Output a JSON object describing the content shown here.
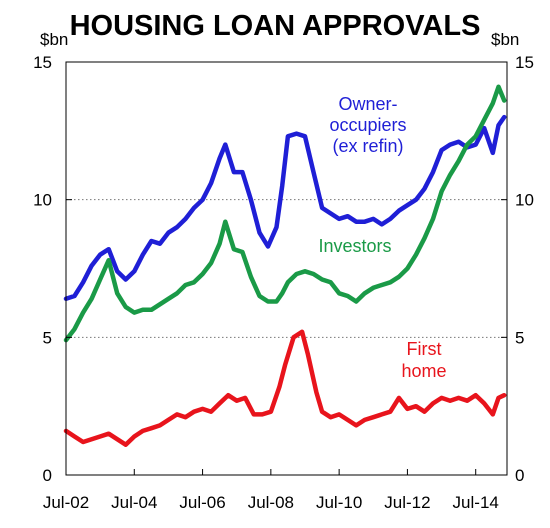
{
  "chart_data": {
    "type": "line",
    "title": "HOUSING LOAN APPROVALS",
    "ylabel_left": "$bn",
    "ylabel_right": "$bn",
    "ylim": [
      0,
      15
    ],
    "yticks": [
      0,
      5,
      10,
      15
    ],
    "yticklabels": [
      "0",
      "5",
      "10",
      "15"
    ],
    "xlim": [
      "2002-07",
      "2015-06"
    ],
    "xticks": [
      "2002-07",
      "2004-07",
      "2006-07",
      "2008-07",
      "2010-07",
      "2012-07",
      "2014-07"
    ],
    "xticklabels": [
      "Jul-02",
      "Jul-04",
      "Jul-06",
      "Jul-08",
      "Jul-10",
      "Jul-12",
      "Jul-14"
    ],
    "gridlines": "horizontal dotted at 5 and 10",
    "series": [
      {
        "name": "Owner-occupiers (ex refin)",
        "label_lines": [
          "Owner-",
          "occupiers",
          "(ex refin)"
        ],
        "color": "#1f1fd6",
        "points": [
          [
            "2002-07",
            6.4
          ],
          [
            "2002-10",
            6.5
          ],
          [
            "2003-01",
            7.0
          ],
          [
            "2003-04",
            7.6
          ],
          [
            "2003-07",
            8.0
          ],
          [
            "2003-10",
            8.2
          ],
          [
            "2004-01",
            7.4
          ],
          [
            "2004-04",
            7.1
          ],
          [
            "2004-07",
            7.4
          ],
          [
            "2004-10",
            8.0
          ],
          [
            "2005-01",
            8.5
          ],
          [
            "2005-04",
            8.4
          ],
          [
            "2005-07",
            8.8
          ],
          [
            "2005-10",
            9.0
          ],
          [
            "2006-01",
            9.3
          ],
          [
            "2006-04",
            9.7
          ],
          [
            "2006-07",
            10.0
          ],
          [
            "2006-10",
            10.6
          ],
          [
            "2007-01",
            11.5
          ],
          [
            "2007-03",
            12.0
          ],
          [
            "2007-06",
            11.0
          ],
          [
            "2007-09",
            11.0
          ],
          [
            "2007-12",
            10.0
          ],
          [
            "2008-03",
            8.8
          ],
          [
            "2008-06",
            8.3
          ],
          [
            "2008-09",
            9.0
          ],
          [
            "2008-11",
            10.5
          ],
          [
            "2009-01",
            12.3
          ],
          [
            "2009-04",
            12.4
          ],
          [
            "2009-07",
            12.3
          ],
          [
            "2009-10",
            11.0
          ],
          [
            "2010-01",
            9.7
          ],
          [
            "2010-04",
            9.5
          ],
          [
            "2010-07",
            9.3
          ],
          [
            "2010-10",
            9.4
          ],
          [
            "2011-01",
            9.2
          ],
          [
            "2011-04",
            9.2
          ],
          [
            "2011-07",
            9.3
          ],
          [
            "2011-10",
            9.1
          ],
          [
            "2012-01",
            9.3
          ],
          [
            "2012-04",
            9.6
          ],
          [
            "2012-07",
            9.8
          ],
          [
            "2012-10",
            10.0
          ],
          [
            "2013-01",
            10.4
          ],
          [
            "2013-04",
            11.0
          ],
          [
            "2013-07",
            11.8
          ],
          [
            "2013-10",
            12.0
          ],
          [
            "2014-01",
            12.1
          ],
          [
            "2014-04",
            11.9
          ],
          [
            "2014-07",
            12.0
          ],
          [
            "2014-10",
            12.6
          ],
          [
            "2015-01",
            11.7
          ],
          [
            "2015-03",
            12.7
          ],
          [
            "2015-05",
            13.0
          ]
        ]
      },
      {
        "name": "Investors",
        "label_lines": [
          "Investors"
        ],
        "color": "#1a9a47",
        "points": [
          [
            "2002-07",
            4.9
          ],
          [
            "2002-10",
            5.3
          ],
          [
            "2003-01",
            5.9
          ],
          [
            "2003-04",
            6.4
          ],
          [
            "2003-07",
            7.1
          ],
          [
            "2003-10",
            7.8
          ],
          [
            "2004-01",
            6.6
          ],
          [
            "2004-04",
            6.1
          ],
          [
            "2004-07",
            5.9
          ],
          [
            "2004-10",
            6.0
          ],
          [
            "2005-01",
            6.0
          ],
          [
            "2005-04",
            6.2
          ],
          [
            "2005-07",
            6.4
          ],
          [
            "2005-10",
            6.6
          ],
          [
            "2006-01",
            6.9
          ],
          [
            "2006-04",
            7.0
          ],
          [
            "2006-07",
            7.3
          ],
          [
            "2006-10",
            7.7
          ],
          [
            "2007-01",
            8.4
          ],
          [
            "2007-03",
            9.2
          ],
          [
            "2007-06",
            8.2
          ],
          [
            "2007-09",
            8.1
          ],
          [
            "2007-12",
            7.2
          ],
          [
            "2008-03",
            6.5
          ],
          [
            "2008-06",
            6.3
          ],
          [
            "2008-09",
            6.3
          ],
          [
            "2008-11",
            6.6
          ],
          [
            "2009-01",
            7.0
          ],
          [
            "2009-04",
            7.3
          ],
          [
            "2009-07",
            7.4
          ],
          [
            "2009-10",
            7.3
          ],
          [
            "2010-01",
            7.1
          ],
          [
            "2010-04",
            7.0
          ],
          [
            "2010-07",
            6.6
          ],
          [
            "2010-10",
            6.5
          ],
          [
            "2011-01",
            6.3
          ],
          [
            "2011-04",
            6.6
          ],
          [
            "2011-07",
            6.8
          ],
          [
            "2011-10",
            6.9
          ],
          [
            "2012-01",
            7.0
          ],
          [
            "2012-04",
            7.2
          ],
          [
            "2012-07",
            7.5
          ],
          [
            "2012-10",
            8.0
          ],
          [
            "2013-01",
            8.6
          ],
          [
            "2013-04",
            9.3
          ],
          [
            "2013-07",
            10.3
          ],
          [
            "2013-10",
            10.9
          ],
          [
            "2014-01",
            11.4
          ],
          [
            "2014-04",
            12.0
          ],
          [
            "2014-07",
            12.3
          ],
          [
            "2014-10",
            12.9
          ],
          [
            "2015-01",
            13.5
          ],
          [
            "2015-03",
            14.1
          ],
          [
            "2015-05",
            13.6
          ]
        ]
      },
      {
        "name": "First home",
        "label_lines": [
          "First",
          "home"
        ],
        "color": "#e8141c",
        "points": [
          [
            "2002-07",
            1.6
          ],
          [
            "2002-10",
            1.4
          ],
          [
            "2003-01",
            1.2
          ],
          [
            "2003-04",
            1.3
          ],
          [
            "2003-07",
            1.4
          ],
          [
            "2003-10",
            1.5
          ],
          [
            "2004-01",
            1.3
          ],
          [
            "2004-04",
            1.1
          ],
          [
            "2004-07",
            1.4
          ],
          [
            "2004-10",
            1.6
          ],
          [
            "2005-01",
            1.7
          ],
          [
            "2005-04",
            1.8
          ],
          [
            "2005-07",
            2.0
          ],
          [
            "2005-10",
            2.2
          ],
          [
            "2006-01",
            2.1
          ],
          [
            "2006-04",
            2.3
          ],
          [
            "2006-07",
            2.4
          ],
          [
            "2006-10",
            2.3
          ],
          [
            "2007-01",
            2.6
          ],
          [
            "2007-04",
            2.9
          ],
          [
            "2007-07",
            2.7
          ],
          [
            "2007-10",
            2.8
          ],
          [
            "2008-01",
            2.2
          ],
          [
            "2008-04",
            2.2
          ],
          [
            "2008-07",
            2.3
          ],
          [
            "2008-10",
            3.2
          ],
          [
            "2008-12",
            4.0
          ],
          [
            "2009-03",
            5.0
          ],
          [
            "2009-06",
            5.2
          ],
          [
            "2009-08",
            4.4
          ],
          [
            "2009-11",
            3.0
          ],
          [
            "2010-01",
            2.3
          ],
          [
            "2010-04",
            2.1
          ],
          [
            "2010-07",
            2.2
          ],
          [
            "2010-10",
            2.0
          ],
          [
            "2011-01",
            1.8
          ],
          [
            "2011-04",
            2.0
          ],
          [
            "2011-07",
            2.1
          ],
          [
            "2011-10",
            2.2
          ],
          [
            "2012-01",
            2.3
          ],
          [
            "2012-04",
            2.8
          ],
          [
            "2012-07",
            2.4
          ],
          [
            "2012-10",
            2.5
          ],
          [
            "2013-01",
            2.3
          ],
          [
            "2013-04",
            2.6
          ],
          [
            "2013-07",
            2.8
          ],
          [
            "2013-10",
            2.7
          ],
          [
            "2014-01",
            2.8
          ],
          [
            "2014-04",
            2.7
          ],
          [
            "2014-07",
            2.9
          ],
          [
            "2014-10",
            2.6
          ],
          [
            "2015-01",
            2.2
          ],
          [
            "2015-03",
            2.8
          ],
          [
            "2015-05",
            2.9
          ]
        ]
      }
    ]
  }
}
